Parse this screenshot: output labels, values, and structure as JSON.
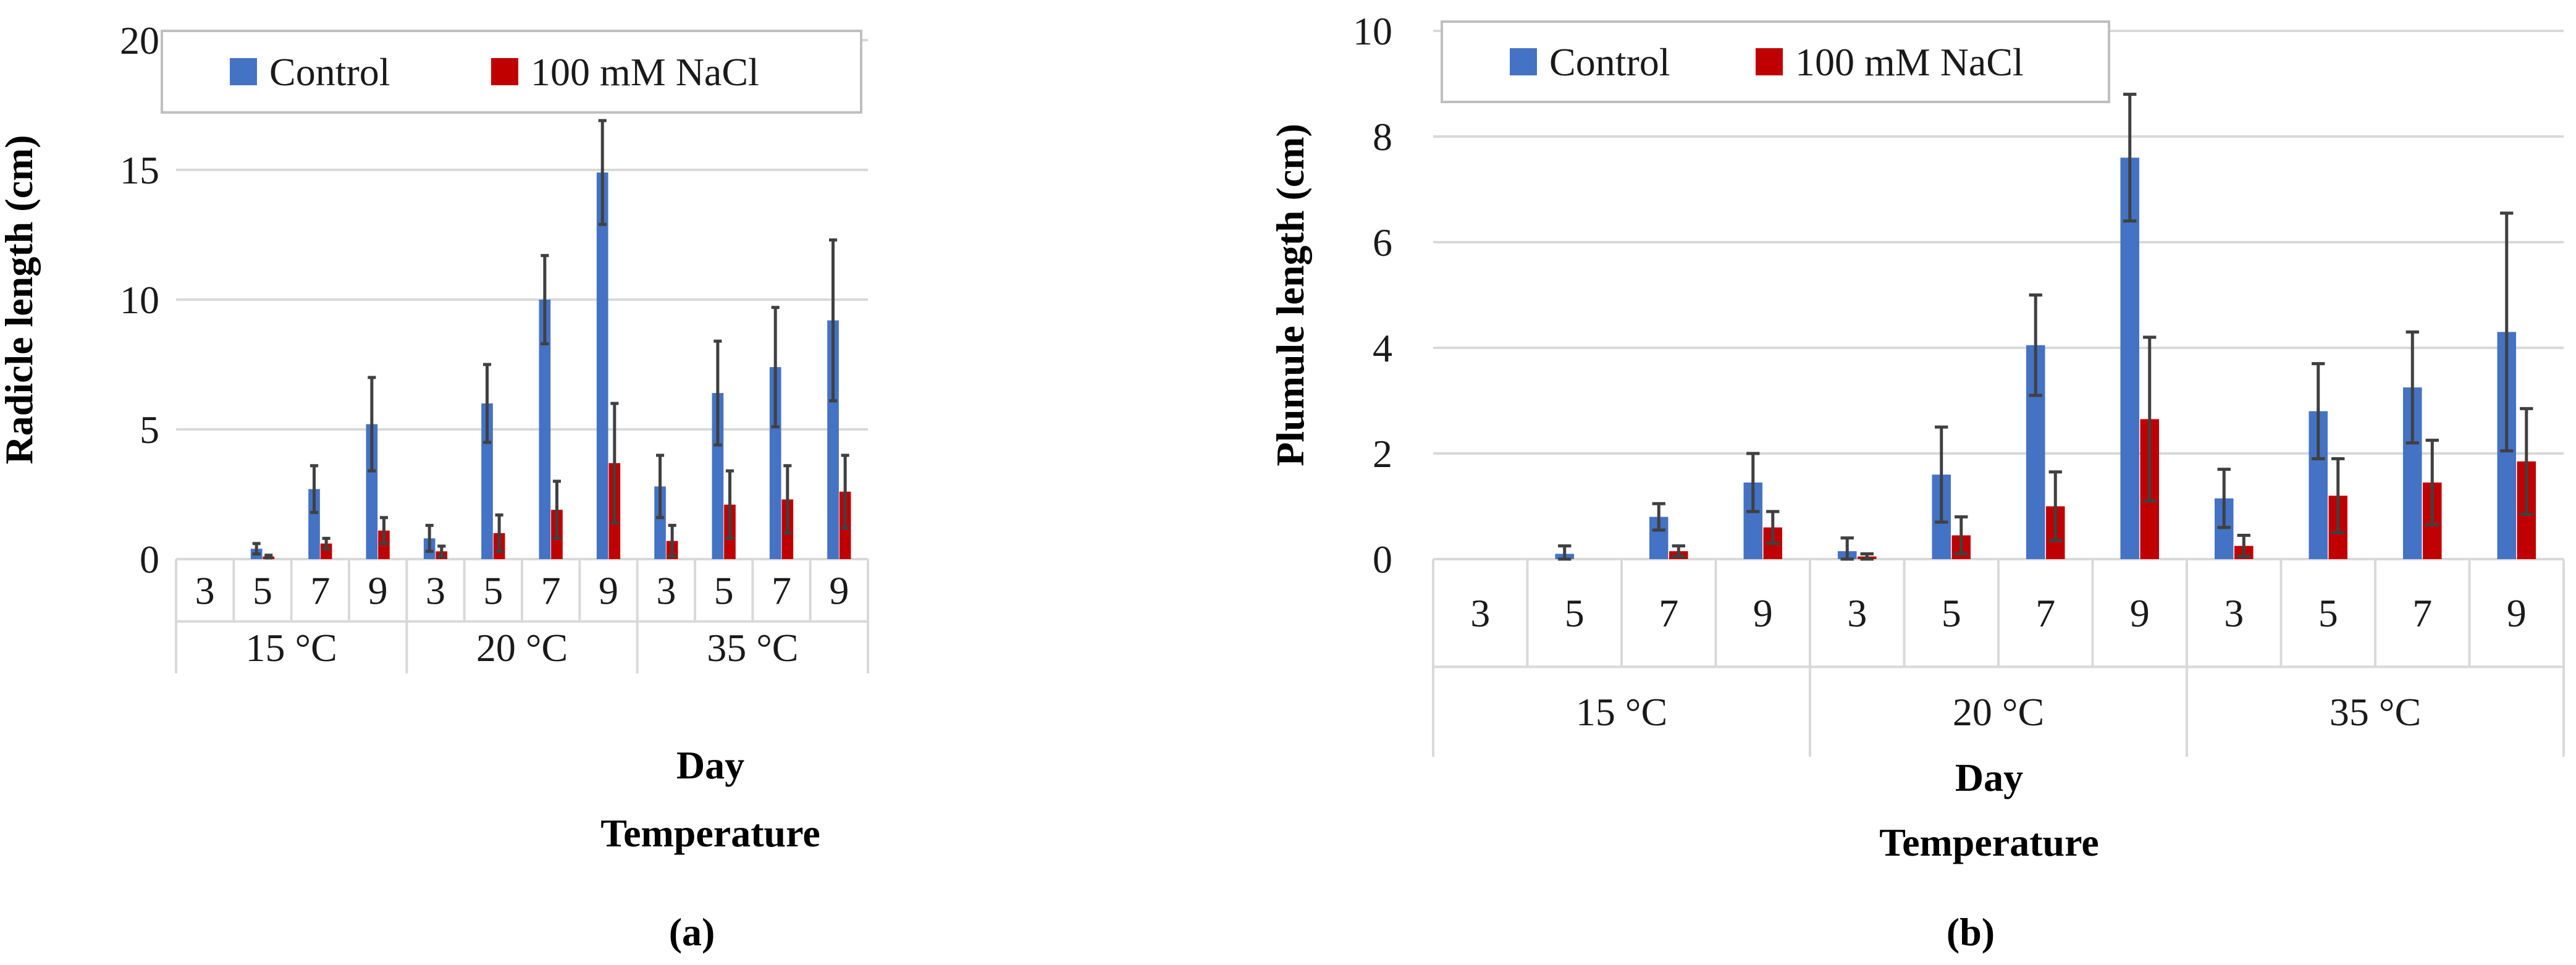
{
  "chart_data": [
    {
      "type": "bar",
      "panel_label": "(a)",
      "ylabel": "Radicle length (cm)",
      "xlabel_primary": "Day",
      "xlabel_secondary": "Temperature",
      "ylim": [
        0,
        20
      ],
      "yticks": [
        "0",
        "5",
        "10",
        "15",
        "20"
      ],
      "legend_position": "top-left",
      "groups": [
        {
          "label": "15 °C",
          "days": [
            "3",
            "5",
            "7",
            "9"
          ]
        },
        {
          "label": "20 °C",
          "days": [
            "3",
            "5",
            "7",
            "9"
          ]
        },
        {
          "label": "35 °C",
          "days": [
            "3",
            "5",
            "7",
            "9"
          ]
        }
      ],
      "series": [
        {
          "name": "Control",
          "color": "#4472C4",
          "values": [
            0,
            0.4,
            2.7,
            5.2,
            0.8,
            6.0,
            10.0,
            14.9,
            2.8,
            6.4,
            7.4,
            9.2
          ],
          "errors": [
            0,
            0.2,
            0.9,
            1.8,
            0.5,
            1.5,
            1.7,
            2.0,
            1.2,
            2.0,
            2.3,
            3.1
          ]
        },
        {
          "name": "100 mM NaCl",
          "color": "#C00000",
          "values": [
            0,
            0.1,
            0.6,
            1.1,
            0.3,
            1.0,
            1.9,
            3.7,
            0.7,
            2.1,
            2.3,
            2.6
          ],
          "errors": [
            0,
            0.05,
            0.2,
            0.5,
            0.2,
            0.7,
            1.1,
            2.3,
            0.6,
            1.3,
            1.3,
            1.4
          ]
        }
      ]
    },
    {
      "type": "bar",
      "panel_label": "(b)",
      "ylabel": "Plumule length (cm)",
      "xlabel_primary": "Day",
      "xlabel_secondary": "Temperature",
      "ylim": [
        0,
        10
      ],
      "yticks": [
        "0",
        "2",
        "4",
        "6",
        "8",
        "10"
      ],
      "legend_position": "top-left",
      "groups": [
        {
          "label": "15 °C",
          "days": [
            "3",
            "5",
            "7",
            "9"
          ]
        },
        {
          "label": "20 °C",
          "days": [
            "3",
            "5",
            "7",
            "9"
          ]
        },
        {
          "label": "35 °C",
          "days": [
            "3",
            "5",
            "7",
            "9"
          ]
        }
      ],
      "series": [
        {
          "name": "Control",
          "color": "#4472C4",
          "values": [
            0,
            0.1,
            0.8,
            1.45,
            0.15,
            1.6,
            4.05,
            7.6,
            1.15,
            2.8,
            3.25,
            4.3
          ],
          "errors": [
            0,
            0.15,
            0.25,
            0.55,
            0.25,
            0.9,
            0.95,
            1.2,
            0.55,
            0.9,
            1.05,
            2.25
          ]
        },
        {
          "name": "100 mM NaCl",
          "color": "#C00000",
          "values": [
            0,
            0,
            0.15,
            0.6,
            0.05,
            0.45,
            1.0,
            2.65,
            0.25,
            1.2,
            1.45,
            1.85
          ],
          "errors": [
            0,
            0,
            0.1,
            0.3,
            0.05,
            0.35,
            0.65,
            1.55,
            0.2,
            0.7,
            0.8,
            1.0
          ]
        }
      ]
    }
  ]
}
